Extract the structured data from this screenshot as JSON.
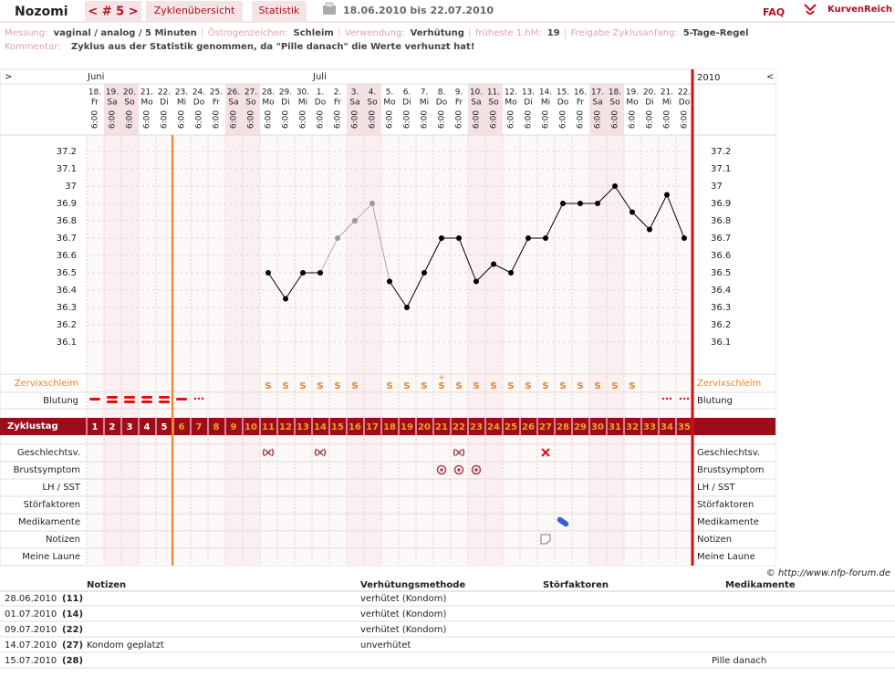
{
  "header": {
    "user": "Nozomi",
    "cycle": "< # 5 >",
    "tabs": [
      "Zyklenübersicht",
      "Statistik"
    ],
    "range": "18.06.2010 bis 22.07.2010",
    "faq": "FAQ",
    "logo": "KurvenReich"
  },
  "info": {
    "items": [
      {
        "label": "Messung:",
        "value": "vaginal / analog / 5 Minuten"
      },
      {
        "label": "Östrogenzeichen:",
        "value": "Schleim"
      },
      {
        "label": "Verwendung:",
        "value": "Verhütung"
      },
      {
        "label": "früheste 1.hM:",
        "value": "19"
      },
      {
        "label": "Freigabe Zyklusanfang:",
        "value": "5-Tage-Regel"
      }
    ],
    "comment_label": "Kommentar:",
    "comment": "Zyklus aus der Statistik genommen, da \"Pille danach\" die Werte verhunzt hat!"
  },
  "nav": {
    "left": ">",
    "right": "<",
    "year": "2010"
  },
  "row_labels": {
    "cervix": "Zervixschleim",
    "bleeding": "Blutung",
    "cycle_day": "Zyklustag",
    "rows": [
      "Geschlechtsv.",
      "Brustsymptom",
      "LH / SST",
      "Störfaktoren",
      "Medikamente",
      "Notizen",
      "Meine Laune"
    ]
  },
  "chart_data": {
    "type": "line",
    "months": [
      "Juni",
      null,
      null,
      null,
      null,
      null,
      null,
      null,
      null,
      null,
      null,
      null,
      null,
      "Juli",
      null,
      null,
      null,
      null,
      null,
      null,
      null,
      null,
      null,
      null,
      null,
      null,
      null,
      null,
      null,
      null,
      null,
      null,
      null,
      null,
      null
    ],
    "categories": [
      "18.",
      "19.",
      "20.",
      "21.",
      "22.",
      "23.",
      "24.",
      "25.",
      "26.",
      "27.",
      "28.",
      "29.",
      "30.",
      "1.",
      "2.",
      "3.",
      "4.",
      "5.",
      "6.",
      "7.",
      "8.",
      "9.",
      "10.",
      "11.",
      "12.",
      "13.",
      "14.",
      "15.",
      "16.",
      "17.",
      "18.",
      "19.",
      "20.",
      "21.",
      "22."
    ],
    "weekdays": [
      "Fr",
      "Sa",
      "So",
      "Mo",
      "Di",
      "Mi",
      "Do",
      "Fr",
      "Sa",
      "So",
      "Mo",
      "Di",
      "Mi",
      "Do",
      "Fr",
      "Sa",
      "So",
      "Mo",
      "Di",
      "Mi",
      "Do",
      "Fr",
      "Sa",
      "So",
      "Mo",
      "Di",
      "Mi",
      "Do",
      "Fr",
      "Sa",
      "So",
      "Mo",
      "Di",
      "Mi",
      "Do"
    ],
    "times": [
      "6:00",
      "6:00",
      "6:00",
      "6:00",
      "6:00",
      "6:00",
      "6:00",
      "6:00",
      "6:00",
      "6:00",
      "6:00",
      "6:00",
      "6:00",
      "6:00",
      "6:00",
      "6:00",
      "6:00",
      "6:00",
      "6:00",
      "6:00",
      "6:00",
      "6:00",
      "6:00",
      "6:00",
      "6:00",
      "6:00",
      "6:00",
      "6:00",
      "6:00",
      "6:00",
      "6:00",
      "6:00",
      "6:00",
      "6:00",
      "6:00"
    ],
    "ylim": [
      36.0,
      37.3
    ],
    "yticks": [
      36.1,
      36.2,
      36.3,
      36.4,
      36.5,
      36.6,
      36.7,
      36.8,
      36.9,
      37,
      37.1,
      37.2
    ],
    "grid": true,
    "series": [
      {
        "color": "#000000",
        "values": [
          null,
          null,
          null,
          null,
          null,
          null,
          null,
          null,
          null,
          null,
          36.5,
          36.35,
          36.5,
          36.5,
          null,
          null,
          null,
          36.45,
          36.3,
          36.5,
          36.7,
          36.7,
          36.45,
          36.55,
          36.5,
          36.7,
          36.7,
          36.9,
          36.9,
          36.9,
          37,
          36.85,
          36.75,
          36.95,
          36.7
        ]
      },
      {
        "color": "#999999",
        "values": [
          null,
          null,
          null,
          null,
          null,
          null,
          null,
          null,
          null,
          null,
          null,
          null,
          null,
          36.5,
          36.7,
          36.8,
          36.9,
          36.45,
          null,
          null,
          null,
          null,
          null,
          null,
          null,
          null,
          null,
          null,
          null,
          null,
          null,
          null,
          null,
          null,
          null
        ]
      }
    ],
    "cervix": [
      null,
      null,
      null,
      null,
      null,
      null,
      null,
      null,
      null,
      null,
      "S",
      "S",
      "S",
      "S",
      "S",
      "S",
      null,
      "S",
      "S",
      "S",
      "S",
      "S",
      "S",
      "S",
      "S",
      "S",
      "S",
      "S",
      "S",
      "S",
      "S",
      "S",
      null,
      null,
      null
    ],
    "cervix_marks": [
      null,
      null,
      null,
      null,
      null,
      null,
      null,
      null,
      null,
      null,
      null,
      null,
      null,
      null,
      null,
      null,
      null,
      null,
      null,
      null,
      "+",
      null,
      null,
      null,
      null,
      null,
      null,
      null,
      null,
      null,
      null,
      null,
      null,
      null,
      null
    ],
    "cycle_days": [
      1,
      2,
      3,
      4,
      5,
      6,
      7,
      8,
      9,
      10,
      11,
      12,
      13,
      14,
      15,
      16,
      17,
      18,
      19,
      20,
      21,
      22,
      23,
      24,
      25,
      26,
      27,
      28,
      29,
      30,
      31,
      32,
      33,
      34,
      35
    ]
  },
  "copyright": "© http://www.nfp-forum.de",
  "table": {
    "headers": [
      "Notizen",
      "Verhütungsmethode",
      "Störfaktoren",
      "Medikamente"
    ],
    "rows": [
      [
        "28.06.2010",
        "(11)",
        null,
        "verhütet (Kondom)",
        null,
        null
      ],
      [
        "01.07.2010",
        "(14)",
        null,
        "verhütet (Kondom)",
        null,
        null
      ],
      [
        "09.07.2010",
        "(22)",
        null,
        "verhütet (Kondom)",
        null,
        null
      ],
      [
        "14.07.2010",
        "(27)",
        "Kondom geplatzt",
        "unverhütet",
        null,
        null
      ],
      [
        "15.07.2010",
        "(28)",
        null,
        null,
        null,
        "Pille danach"
      ]
    ]
  }
}
